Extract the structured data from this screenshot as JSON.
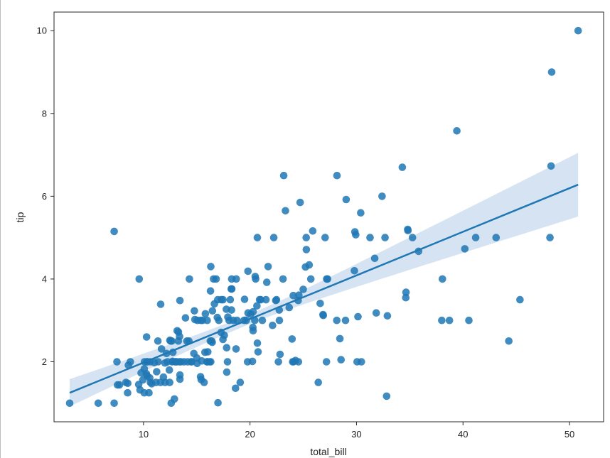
{
  "chart_data": {
    "type": "scatter",
    "title": "",
    "xlabel": "total_bill",
    "ylabel": "tip",
    "xlim": [
      1.6,
      53.2
    ],
    "ylim": [
      0.55,
      10.45
    ],
    "xticks": [
      10,
      20,
      30,
      40,
      50
    ],
    "yticks": [
      2,
      4,
      6,
      8,
      10
    ],
    "grid": false,
    "point_color": "#1f77b4",
    "ci_color": "#c8daed",
    "regression": {
      "x": [
        3.07,
        50.81
      ],
      "y": [
        1.25,
        6.28
      ],
      "ci_lower": [
        0.93,
        5.51
      ],
      "ci_upper": [
        1.59,
        7.05
      ]
    },
    "ci_band_x": [
      3.07,
      10,
      20,
      30,
      40,
      50.81
    ],
    "points": [
      [
        3.07,
        1.0
      ],
      [
        5.75,
        1.0
      ],
      [
        7.25,
        1.0
      ],
      [
        7.25,
        5.15
      ],
      [
        7.51,
        2.0
      ],
      [
        7.56,
        1.44
      ],
      [
        7.74,
        1.44
      ],
      [
        8.35,
        1.5
      ],
      [
        8.51,
        1.25
      ],
      [
        8.52,
        1.48
      ],
      [
        8.58,
        1.92
      ],
      [
        8.77,
        2.0
      ],
      [
        9.55,
        1.45
      ],
      [
        9.6,
        4.0
      ],
      [
        9.68,
        1.32
      ],
      [
        9.78,
        1.73
      ],
      [
        9.94,
        1.56
      ],
      [
        10.07,
        1.25
      ],
      [
        10.07,
        1.83
      ],
      [
        10.09,
        2.0
      ],
      [
        10.27,
        1.71
      ],
      [
        10.29,
        2.6
      ],
      [
        10.33,
        2.0
      ],
      [
        10.34,
        1.66
      ],
      [
        10.34,
        2.0
      ],
      [
        10.51,
        1.25
      ],
      [
        10.59,
        1.61
      ],
      [
        10.63,
        2.0
      ],
      [
        10.65,
        1.5
      ],
      [
        10.77,
        1.47
      ],
      [
        11.02,
        1.98
      ],
      [
        11.17,
        1.5
      ],
      [
        11.24,
        1.76
      ],
      [
        11.35,
        2.5
      ],
      [
        11.38,
        2.0
      ],
      [
        11.59,
        1.5
      ],
      [
        11.61,
        3.39
      ],
      [
        11.69,
        2.31
      ],
      [
        11.87,
        1.63
      ],
      [
        12.02,
        1.97
      ],
      [
        12.03,
        1.5
      ],
      [
        12.16,
        2.2
      ],
      [
        12.26,
        2.0
      ],
      [
        12.43,
        1.8
      ],
      [
        12.46,
        1.5
      ],
      [
        12.48,
        2.52
      ],
      [
        12.54,
        2.5
      ],
      [
        12.6,
        1.0
      ],
      [
        12.66,
        2.5
      ],
      [
        12.69,
        2.0
      ],
      [
        12.74,
        2.01
      ],
      [
        12.76,
        2.23
      ],
      [
        12.9,
        1.1
      ],
      [
        13.0,
        2.0
      ],
      [
        13.03,
        2.0
      ],
      [
        13.13,
        2.0
      ],
      [
        13.16,
        2.75
      ],
      [
        13.27,
        2.5
      ],
      [
        13.28,
        2.72
      ],
      [
        13.37,
        2.0
      ],
      [
        13.39,
        2.61
      ],
      [
        13.42,
        1.58
      ],
      [
        13.42,
        3.48
      ],
      [
        13.42,
        1.68
      ],
      [
        13.51,
        2.0
      ],
      [
        13.81,
        2.0
      ],
      [
        13.94,
        3.06
      ],
      [
        14.07,
        2.5
      ],
      [
        14.15,
        2.0
      ],
      [
        14.26,
        2.5
      ],
      [
        14.31,
        4.0
      ],
      [
        14.48,
        2.0
      ],
      [
        14.52,
        2.0
      ],
      [
        14.73,
        2.2
      ],
      [
        14.78,
        3.23
      ],
      [
        14.83,
        3.02
      ],
      [
        15.01,
        2.09
      ],
      [
        15.04,
        1.96
      ],
      [
        15.06,
        3.0
      ],
      [
        15.36,
        1.64
      ],
      [
        15.38,
        3.0
      ],
      [
        15.42,
        1.57
      ],
      [
        15.48,
        2.02
      ],
      [
        15.53,
        3.0
      ],
      [
        15.69,
        1.5
      ],
      [
        15.77,
        2.23
      ],
      [
        15.81,
        3.16
      ],
      [
        15.95,
        2.0
      ],
      [
        15.98,
        3.0
      ],
      [
        16.0,
        2.0
      ],
      [
        16.04,
        2.24
      ],
      [
        16.21,
        2.0
      ],
      [
        16.27,
        2.5
      ],
      [
        16.29,
        3.71
      ],
      [
        16.31,
        2.0
      ],
      [
        16.32,
        4.3
      ],
      [
        16.4,
        2.5
      ],
      [
        16.45,
        2.47
      ],
      [
        16.47,
        3.23
      ],
      [
        16.58,
        4.0
      ],
      [
        16.66,
        3.4
      ],
      [
        16.82,
        4.0
      ],
      [
        16.93,
        3.07
      ],
      [
        16.97,
        3.5
      ],
      [
        16.99,
        1.01
      ],
      [
        17.07,
        3.0
      ],
      [
        17.29,
        2.71
      ],
      [
        17.31,
        3.5
      ],
      [
        17.46,
        2.54
      ],
      [
        17.47,
        3.5
      ],
      [
        17.59,
        2.64
      ],
      [
        17.78,
        3.27
      ],
      [
        17.81,
        2.34
      ],
      [
        17.82,
        1.75
      ],
      [
        17.89,
        2.0
      ],
      [
        17.92,
        3.08
      ],
      [
        18.04,
        3.0
      ],
      [
        18.15,
        3.5
      ],
      [
        18.24,
        3.76
      ],
      [
        18.26,
        3.25
      ],
      [
        18.28,
        4.0
      ],
      [
        18.29,
        3.76
      ],
      [
        18.43,
        3.0
      ],
      [
        18.64,
        1.36
      ],
      [
        18.69,
        2.31
      ],
      [
        18.71,
        4.0
      ],
      [
        18.78,
        3.0
      ],
      [
        19.08,
        1.5
      ],
      [
        19.44,
        3.0
      ],
      [
        19.49,
        3.51
      ],
      [
        19.65,
        3.0
      ],
      [
        19.77,
        2.0
      ],
      [
        19.81,
        4.19
      ],
      [
        19.82,
        3.18
      ],
      [
        20.08,
        3.15
      ],
      [
        20.23,
        2.01
      ],
      [
        20.27,
        2.83
      ],
      [
        20.29,
        2.75
      ],
      [
        20.29,
        3.21
      ],
      [
        20.45,
        3.0
      ],
      [
        20.49,
        4.06
      ],
      [
        20.53,
        4.0
      ],
      [
        20.65,
        3.35
      ],
      [
        20.69,
        2.45
      ],
      [
        20.69,
        5.0
      ],
      [
        20.76,
        2.24
      ],
      [
        20.9,
        3.5
      ],
      [
        21.01,
        3.5
      ],
      [
        21.16,
        3.0
      ],
      [
        21.5,
        3.5
      ],
      [
        21.58,
        3.92
      ],
      [
        21.7,
        4.3
      ],
      [
        22.12,
        2.88
      ],
      [
        22.23,
        5.0
      ],
      [
        22.42,
        3.48
      ],
      [
        22.49,
        3.5
      ],
      [
        22.67,
        2.0
      ],
      [
        22.75,
        3.25
      ],
      [
        22.76,
        3.0
      ],
      [
        22.82,
        2.18
      ],
      [
        23.1,
        4.0
      ],
      [
        23.17,
        6.5
      ],
      [
        23.33,
        5.65
      ],
      [
        23.68,
        3.31
      ],
      [
        23.95,
        2.55
      ],
      [
        24.01,
        2.0
      ],
      [
        24.06,
        3.6
      ],
      [
        24.08,
        2.0
      ],
      [
        24.27,
        2.03
      ],
      [
        24.52,
        3.48
      ],
      [
        24.55,
        2.0
      ],
      [
        24.59,
        3.61
      ],
      [
        24.71,
        5.85
      ],
      [
        25.0,
        3.75
      ],
      [
        25.21,
        4.29
      ],
      [
        25.28,
        5.0
      ],
      [
        25.29,
        4.71
      ],
      [
        25.56,
        4.34
      ],
      [
        25.71,
        4.0
      ],
      [
        25.89,
        5.16
      ],
      [
        26.41,
        1.5
      ],
      [
        26.59,
        3.41
      ],
      [
        26.86,
        3.14
      ],
      [
        26.88,
        3.12
      ],
      [
        27.05,
        5.0
      ],
      [
        27.18,
        2.0
      ],
      [
        27.2,
        4.0
      ],
      [
        27.28,
        4.0
      ],
      [
        28.15,
        3.0
      ],
      [
        28.17,
        6.5
      ],
      [
        28.44,
        2.56
      ],
      [
        28.55,
        2.05
      ],
      [
        28.97,
        3.0
      ],
      [
        29.03,
        5.92
      ],
      [
        29.8,
        4.2
      ],
      [
        29.85,
        5.14
      ],
      [
        29.93,
        5.07
      ],
      [
        30.06,
        2.0
      ],
      [
        30.14,
        3.09
      ],
      [
        30.4,
        5.6
      ],
      [
        30.46,
        2.0
      ],
      [
        31.27,
        5.0
      ],
      [
        31.71,
        4.5
      ],
      [
        31.85,
        3.18
      ],
      [
        32.4,
        6.0
      ],
      [
        32.68,
        5.0
      ],
      [
        32.83,
        1.17
      ],
      [
        32.9,
        3.11
      ],
      [
        34.3,
        6.7
      ],
      [
        34.63,
        3.55
      ],
      [
        34.65,
        3.68
      ],
      [
        34.81,
        5.2
      ],
      [
        34.83,
        5.17
      ],
      [
        35.26,
        5.0
      ],
      [
        35.83,
        4.67
      ],
      [
        38.01,
        3.0
      ],
      [
        38.07,
        4.0
      ],
      [
        38.73,
        3.0
      ],
      [
        39.42,
        7.58
      ],
      [
        40.17,
        4.73
      ],
      [
        40.55,
        3.0
      ],
      [
        41.19,
        5.0
      ],
      [
        43.11,
        5.0
      ],
      [
        44.3,
        2.5
      ],
      [
        45.35,
        3.5
      ],
      [
        48.17,
        5.0
      ],
      [
        48.27,
        6.73
      ],
      [
        48.33,
        9.0
      ],
      [
        50.81,
        10.0
      ]
    ]
  }
}
